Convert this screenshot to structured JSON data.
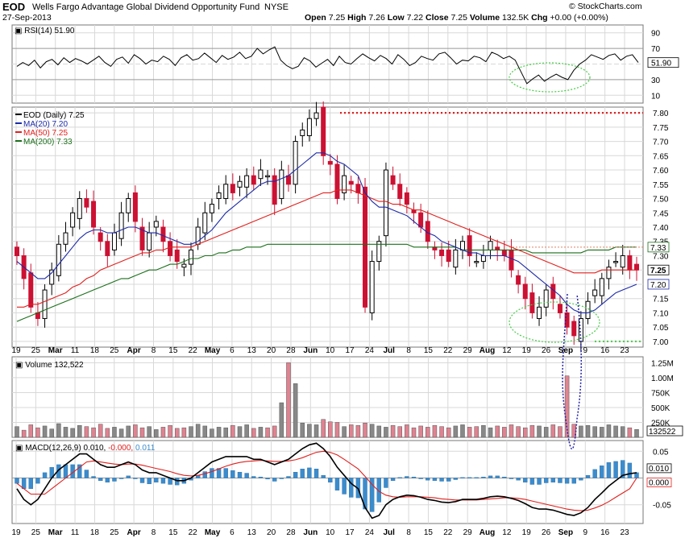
{
  "header": {
    "symbol": "EOD",
    "fund_name": "Wells Fargo Advantage Global Dividend Opportunity Fund",
    "exchange": "NYSE",
    "date": "27-Sep-2013",
    "open_label": "Open",
    "open": "7.25",
    "high_label": "High",
    "high": "7.26",
    "low_label": "Low",
    "low": "7.22",
    "close_label": "Close",
    "close": "7.25",
    "volume_label": "Volume",
    "volume": "132.5K",
    "chg_label": "Chg",
    "chg": "+0.00 (+0.00%)",
    "copyright": "© StockCharts.com"
  },
  "colors": {
    "up": "#000000",
    "down": "#cc1133",
    "ma20": "#1c2aa8",
    "ma50": "#e0201d",
    "ma200": "#1a6e1a",
    "rsi": "#000000",
    "volume_up": "#888888",
    "volume_down": "#e08290",
    "macd_line": "#000000",
    "signal_line": "#e0201d",
    "histogram": "#3b8ccd",
    "annotation_red": "#e31d1d",
    "annotation_green": "#44cc44",
    "annotation_blue": "#2222aa",
    "grid": "#d8d8d8",
    "grid_strong": "#c8c8c8"
  },
  "chart_data": [
    {
      "type": "line",
      "panel": "rsi",
      "legend": "RSI(14) 51.90",
      "current_value": "51.90",
      "y_ticks": [
        10,
        30,
        50,
        70,
        90
      ],
      "ylim": [
        0,
        100
      ],
      "series": [
        {
          "name": "RSI(14)",
          "values": [
            47,
            52,
            48,
            55,
            45,
            53,
            56,
            49,
            58,
            52,
            57,
            54,
            50,
            55,
            60,
            52,
            47,
            56,
            59,
            51,
            62,
            57,
            50,
            55,
            53,
            60,
            56,
            48,
            58,
            62,
            55,
            57,
            64,
            58,
            52,
            61,
            56,
            59,
            65,
            57,
            60,
            70,
            63,
            68,
            72,
            55,
            48,
            44,
            47,
            58,
            54,
            46,
            51,
            56,
            48,
            60,
            52,
            50,
            57,
            63,
            58,
            54,
            61,
            57,
            50,
            62,
            56,
            48,
            52,
            60,
            57,
            55,
            63,
            65,
            58,
            50,
            55,
            54,
            60,
            58,
            53,
            65,
            62,
            57,
            60,
            55,
            40,
            25,
            31,
            36,
            28,
            33,
            37,
            33,
            30,
            42,
            50,
            55,
            62,
            59,
            56,
            61,
            63,
            55,
            60,
            62,
            52
          ]
        }
      ]
    },
    {
      "type": "candlestick",
      "panel": "price",
      "legend": [
        "EOD (Daily) 7.25",
        "MA(20) 7.20",
        "MA(50) 7.25",
        "MA(200) 7.33"
      ],
      "y_ticks": [
        7.0,
        7.05,
        7.1,
        7.15,
        7.2,
        7.25,
        7.3,
        7.35,
        7.4,
        7.45,
        7.5,
        7.55,
        7.6,
        7.65,
        7.7,
        7.75,
        7.8
      ],
      "y_tick_labels": [
        "7.00",
        "7.05",
        "7.10",
        "7.15",
        "7.20",
        "7.25",
        "7.30",
        "7.35",
        "7.40",
        "7.45",
        "7.50",
        "7.55",
        "7.60",
        "7.65",
        "7.70",
        "7.75",
        "7.80"
      ],
      "ylim": [
        6.98,
        7.82
      ],
      "price_tags": [
        "7.33",
        "7.25",
        "7.20"
      ],
      "closes": [
        7.3,
        7.22,
        7.12,
        7.08,
        7.18,
        7.25,
        7.34,
        7.38,
        7.45,
        7.5,
        7.47,
        7.4,
        7.35,
        7.3,
        7.38,
        7.45,
        7.5,
        7.42,
        7.32,
        7.38,
        7.42,
        7.35,
        7.3,
        7.28,
        7.27,
        7.32,
        7.4,
        7.45,
        7.48,
        7.52,
        7.55,
        7.52,
        7.56,
        7.58,
        7.55,
        7.6,
        7.58,
        7.48,
        7.6,
        7.55,
        7.7,
        7.74,
        7.78,
        7.8,
        7.65,
        7.62,
        7.5,
        7.58,
        7.55,
        7.52,
        7.12,
        7.28,
        7.35,
        7.6,
        7.55,
        7.5,
        7.48,
        7.45,
        7.4,
        7.35,
        7.32,
        7.3,
        7.28,
        7.32,
        7.35,
        7.3,
        7.28,
        7.3,
        7.35,
        7.32,
        7.3,
        7.25,
        7.2,
        7.15,
        7.1,
        7.12,
        7.18,
        7.15,
        7.1,
        7.05,
        7.02,
        7.08,
        7.14,
        7.18,
        7.22,
        7.26,
        7.28,
        7.3,
        7.25,
        7.25
      ],
      "ma20": [
        7.28,
        7.26,
        7.24,
        7.22,
        7.22,
        7.24,
        7.27,
        7.3,
        7.33,
        7.36,
        7.38,
        7.39,
        7.39,
        7.38,
        7.38,
        7.39,
        7.4,
        7.4,
        7.39,
        7.38,
        7.38,
        7.37,
        7.36,
        7.35,
        7.34,
        7.34,
        7.35,
        7.37,
        7.39,
        7.42,
        7.45,
        7.47,
        7.49,
        7.51,
        7.53,
        7.55,
        7.56,
        7.56,
        7.57,
        7.58,
        7.6,
        7.62,
        7.64,
        7.66,
        7.66,
        7.65,
        7.63,
        7.62,
        7.6,
        7.58,
        7.52,
        7.49,
        7.47,
        7.47,
        7.46,
        7.45,
        7.44,
        7.42,
        7.4,
        7.38,
        7.37,
        7.35,
        7.34,
        7.33,
        7.32,
        7.31,
        7.31,
        7.3,
        7.3,
        7.3,
        7.3,
        7.29,
        7.28,
        7.26,
        7.24,
        7.22,
        7.2,
        7.18,
        7.16,
        7.13,
        7.11,
        7.1,
        7.1,
        7.11,
        7.13,
        7.15,
        7.17,
        7.18,
        7.19,
        7.2
      ],
      "ma50": [
        7.12,
        7.12,
        7.13,
        7.13,
        7.14,
        7.15,
        7.16,
        7.17,
        7.19,
        7.2,
        7.22,
        7.23,
        7.25,
        7.26,
        7.27,
        7.28,
        7.29,
        7.3,
        7.31,
        7.31,
        7.32,
        7.32,
        7.33,
        7.33,
        7.33,
        7.33,
        7.34,
        7.35,
        7.36,
        7.37,
        7.38,
        7.39,
        7.4,
        7.41,
        7.42,
        7.43,
        7.44,
        7.45,
        7.46,
        7.47,
        7.48,
        7.49,
        7.5,
        7.51,
        7.52,
        7.52,
        7.53,
        7.53,
        7.53,
        7.52,
        7.51,
        7.5,
        7.49,
        7.49,
        7.48,
        7.48,
        7.47,
        7.46,
        7.46,
        7.45,
        7.44,
        7.43,
        7.42,
        7.41,
        7.4,
        7.39,
        7.38,
        7.37,
        7.36,
        7.35,
        7.34,
        7.33,
        7.32,
        7.31,
        7.3,
        7.29,
        7.28,
        7.27,
        7.26,
        7.25,
        7.24,
        7.24,
        7.24,
        7.24,
        7.25,
        7.25,
        7.25,
        7.25,
        7.25,
        7.25
      ],
      "ma200": [
        7.07,
        7.08,
        7.09,
        7.1,
        7.11,
        7.12,
        7.13,
        7.14,
        7.15,
        7.16,
        7.17,
        7.18,
        7.19,
        7.2,
        7.21,
        7.22,
        7.22,
        7.23,
        7.24,
        7.25,
        7.25,
        7.26,
        7.27,
        7.27,
        7.28,
        7.29,
        7.29,
        7.3,
        7.3,
        7.31,
        7.31,
        7.32,
        7.32,
        7.33,
        7.33,
        7.33,
        7.34,
        7.34,
        7.34,
        7.34,
        7.34,
        7.34,
        7.34,
        7.34,
        7.34,
        7.34,
        7.34,
        7.34,
        7.34,
        7.34,
        7.34,
        7.34,
        7.34,
        7.34,
        7.34,
        7.34,
        7.34,
        7.33,
        7.33,
        7.33,
        7.33,
        7.33,
        7.33,
        7.33,
        7.32,
        7.32,
        7.32,
        7.32,
        7.32,
        7.32,
        7.32,
        7.32,
        7.32,
        7.32,
        7.31,
        7.31,
        7.31,
        7.31,
        7.31,
        7.31,
        7.31,
        7.31,
        7.32,
        7.32,
        7.32,
        7.32,
        7.33,
        7.33,
        7.33,
        7.33
      ]
    },
    {
      "type": "bar",
      "panel": "volume",
      "legend": "Volume 132,522",
      "current_value": "132522",
      "y_ticks": [
        250000,
        500000,
        750000,
        1000000,
        1250000
      ],
      "y_tick_labels": [
        "250K",
        "500K",
        "750K",
        "1.00M",
        "1.25M"
      ],
      "ylim": [
        0,
        1350000
      ],
      "values": [
        180000,
        120000,
        210000,
        160000,
        190000,
        140000,
        230000,
        170000,
        150000,
        200000,
        180000,
        160000,
        220000,
        150000,
        170000,
        140000,
        190000,
        210000,
        160000,
        180000,
        130000,
        170000,
        200000,
        150000,
        160000,
        180000,
        220000,
        190000,
        140000,
        170000,
        160000,
        200000,
        180000,
        210000,
        150000,
        170000,
        160000,
        190000,
        580000,
        1250000,
        900000,
        240000,
        220000,
        210000,
        300000,
        260000,
        250000,
        180000,
        210000,
        200000,
        240000,
        220000,
        190000,
        170000,
        200000,
        180000,
        210000,
        160000,
        190000,
        170000,
        200000,
        180000,
        160000,
        190000,
        210000,
        170000,
        180000,
        200000,
        160000,
        190000,
        170000,
        210000,
        180000,
        160000,
        200000,
        190000,
        170000,
        210000,
        180000,
        1030000,
        220000,
        190000,
        200000,
        180000,
        170000,
        210000,
        190000,
        180000,
        160000,
        132522
      ]
    },
    {
      "type": "line",
      "panel": "macd",
      "legend_prefix": "MACD(12,26,9)",
      "macd_value": "0.010",
      "signal_value": "-0.000",
      "histogram_value": "0.011",
      "price_tags": [
        "0.010",
        "0.000"
      ],
      "y_ticks": [
        0.05,
        -0.05
      ],
      "y_tick_labels": [
        "0.05",
        "-0.05"
      ],
      "ylim": [
        -0.085,
        0.07
      ],
      "macd": [
        -0.02,
        -0.04,
        -0.05,
        -0.04,
        -0.02,
        0.0,
        0.015,
        0.025,
        0.035,
        0.045,
        0.045,
        0.035,
        0.025,
        0.02,
        0.02,
        0.025,
        0.03,
        0.025,
        0.015,
        0.01,
        0.01,
        0.005,
        0.0,
        -0.005,
        -0.005,
        0.0,
        0.01,
        0.02,
        0.03,
        0.035,
        0.04,
        0.04,
        0.04,
        0.04,
        0.035,
        0.035,
        0.03,
        0.025,
        0.03,
        0.035,
        0.045,
        0.055,
        0.062,
        0.065,
        0.055,
        0.04,
        0.02,
        0.005,
        -0.01,
        -0.02,
        -0.055,
        -0.075,
        -0.07,
        -0.05,
        -0.04,
        -0.035,
        -0.032,
        -0.033,
        -0.036,
        -0.04,
        -0.042,
        -0.045,
        -0.046,
        -0.044,
        -0.04,
        -0.04,
        -0.04,
        -0.038,
        -0.035,
        -0.034,
        -0.035,
        -0.038,
        -0.042,
        -0.048,
        -0.055,
        -0.058,
        -0.058,
        -0.06,
        -0.064,
        -0.068,
        -0.07,
        -0.065,
        -0.055,
        -0.04,
        -0.028,
        -0.015,
        -0.005,
        0.005,
        0.008,
        0.01
      ],
      "signal": [
        -0.01,
        -0.02,
        -0.03,
        -0.03,
        -0.03,
        -0.02,
        -0.01,
        0.0,
        0.01,
        0.02,
        0.03,
        0.032,
        0.03,
        0.028,
        0.026,
        0.025,
        0.026,
        0.026,
        0.024,
        0.021,
        0.018,
        0.015,
        0.012,
        0.008,
        0.005,
        0.004,
        0.005,
        0.008,
        0.012,
        0.017,
        0.022,
        0.026,
        0.029,
        0.031,
        0.032,
        0.033,
        0.032,
        0.031,
        0.031,
        0.032,
        0.034,
        0.038,
        0.043,
        0.048,
        0.05,
        0.048,
        0.043,
        0.035,
        0.026,
        0.017,
        0.003,
        -0.012,
        -0.025,
        -0.032,
        -0.035,
        -0.036,
        -0.035,
        -0.035,
        -0.035,
        -0.036,
        -0.037,
        -0.039,
        -0.04,
        -0.041,
        -0.041,
        -0.041,
        -0.041,
        -0.04,
        -0.039,
        -0.038,
        -0.037,
        -0.037,
        -0.038,
        -0.04,
        -0.043,
        -0.046,
        -0.049,
        -0.052,
        -0.055,
        -0.058,
        -0.06,
        -0.061,
        -0.06,
        -0.056,
        -0.051,
        -0.044,
        -0.036,
        -0.028,
        -0.02,
        -0.0
      ]
    }
  ],
  "x_axis": {
    "labels": [
      "19",
      "25",
      "Mar",
      "11",
      "18",
      "25",
      "Apr",
      "8",
      "15",
      "22",
      "May",
      "6",
      "13",
      "20",
      "28",
      "Jun",
      "10",
      "17",
      "24",
      "Jul",
      "8",
      "15",
      "22",
      "29",
      "Aug",
      "12",
      "19",
      "26",
      "Sep",
      "9",
      "16",
      "23"
    ],
    "bold_labels": [
      "Mar",
      "Apr",
      "May",
      "Jun",
      "Jul",
      "Aug",
      "Sep"
    ]
  }
}
